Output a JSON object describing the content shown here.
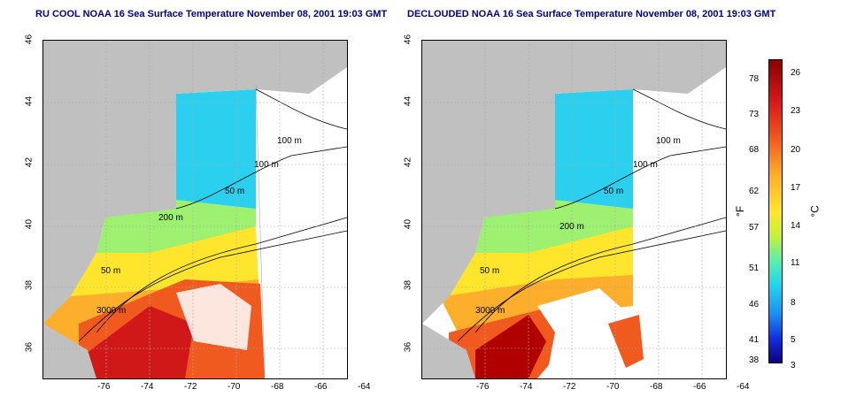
{
  "titles": {
    "left": "RU COOL NOAA 16 Sea Surface Temperature November 08, 2001 19:03 GMT",
    "right": "DECLOUDED NOAA 16 Sea Surface Temperature November 08, 2001 19:03 GMT"
  },
  "axes": {
    "x_ticks": [
      "-76",
      "-74",
      "-72",
      "-70",
      "-68",
      "-66",
      "-64"
    ],
    "y_ticks": [
      "46",
      "44",
      "42",
      "40",
      "38",
      "36"
    ]
  },
  "contours": {
    "c100a": "100 m",
    "c100b": "100 m",
    "c50a": "50 m",
    "c200": "200 m",
    "c50b": "50 m",
    "c3000": "3000 m"
  },
  "colorbar": {
    "fahrenheit_unit": "°F",
    "celsius_unit": "°C",
    "fahrenheit_ticks": [
      "78",
      "73",
      "68",
      "62",
      "57",
      "51",
      "46",
      "41",
      "38"
    ],
    "celsius_ticks": [
      "26",
      "23",
      "20",
      "17",
      "14",
      "11",
      "8",
      "5",
      "3"
    ]
  },
  "colors": {
    "land": "#c0c0c0",
    "cold": "#2ad0ee",
    "mid": "#ffe62c",
    "warm": "#f05a1e",
    "hot": "#b00000"
  }
}
